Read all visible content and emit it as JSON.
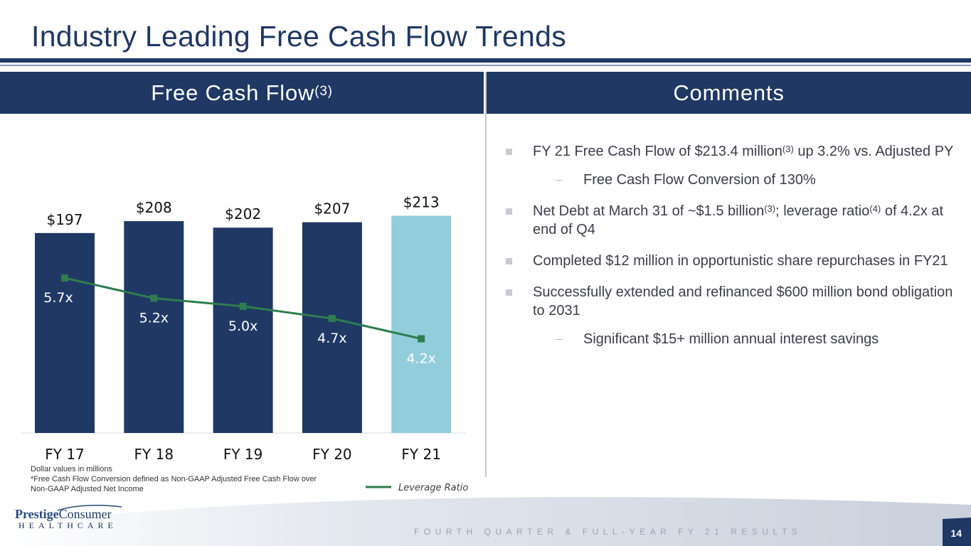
{
  "title": "Industry Leading Free Cash Flow Trends",
  "left_header": {
    "label": "Free Cash Flow",
    "superscript": "(3)"
  },
  "right_header": {
    "label": "Comments"
  },
  "chart_data": {
    "type": "bar",
    "categories": [
      "FY 17",
      "FY 18",
      "FY 19",
      "FY 20",
      "FY 21"
    ],
    "series": [
      {
        "name": "",
        "type": "bar",
        "values": [
          197,
          208,
          202,
          207,
          213
        ],
        "labels": [
          "$197",
          "$208",
          "$202",
          "$207",
          "$213"
        ],
        "colors": [
          "#1f3864",
          "#1f3864",
          "#1f3864",
          "#1f3864",
          "#92cddc"
        ]
      },
      {
        "name": "Leverage Ratio",
        "type": "line",
        "values": [
          5.7,
          5.2,
          5.0,
          4.7,
          4.2
        ],
        "labels": [
          "5.7x",
          "5.2x",
          "5.0x",
          "4.7x",
          "4.2x"
        ],
        "color": "#2e7d4f"
      }
    ],
    "legend": {
      "label": "Leverage Ratio",
      "position": "bottom-right"
    },
    "title": "",
    "xlabel": "",
    "ylabel": "",
    "ylim": [
      0,
      240
    ]
  },
  "notes": [
    "Dollar values in millions",
    "*Free Cash Flow Conversion defined as Non-GAAP Adjusted Free Cash Flow over",
    "Non-GAAP Adjusted Net Income"
  ],
  "comments": {
    "b1": {
      "text_a": "FY 21 Free Cash Flow of $213.4 million",
      "sup": "(3)",
      "text_b": " up 3.2% vs. Adjusted PY"
    },
    "s1": "Free Cash Flow Conversion of 130%",
    "b2": {
      "text_a": "Net Debt at March 31 of ~$1.5 billion",
      "sup": "(3)",
      "text_b": "; leverage ratio",
      "sup2": "(4)",
      "text_c": " of 4.2x at end of Q4"
    },
    "b3": "Completed $12 million in opportunistic share repurchases in FY21",
    "b4": "Successfully extended and refinanced $600 million bond obligation to 2031",
    "s2": "Significant $15+ million annual interest savings"
  },
  "footer": {
    "text": "FOURTH QUARTER & FULL-YEAR FY 21 RESULTS",
    "page_number": "14",
    "logo_top_a": "Prestige",
    "logo_top_b": "Consumer",
    "logo_bottom": "HEALTHCARE"
  },
  "colors": {
    "navy": "#1f3864",
    "light_blue": "#92cddc",
    "line_green": "#2e7d4f"
  }
}
